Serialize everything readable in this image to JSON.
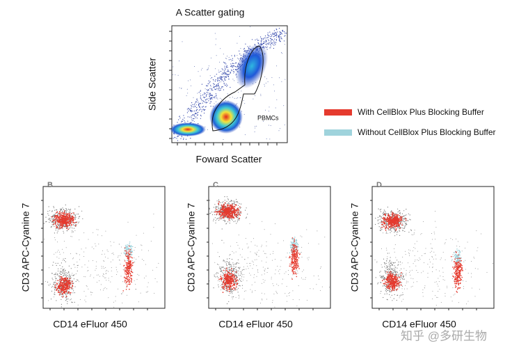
{
  "panel_a": {
    "title": "A Scatter gating",
    "y_label": "Side Scatter",
    "x_label": "Foward Scatter",
    "gate_label": "PBMCs"
  },
  "legend": [
    {
      "label": "With CellBlox Plus Blocking Buffer",
      "color": "#e53a2e"
    },
    {
      "label": "Without CellBlox Plus Blocking Buffer",
      "color": "#9fd3dc"
    }
  ],
  "panels": [
    {
      "letter": "B",
      "y_label": "CD3 APC-Cyanine 7",
      "x_label": "CD14 eFluor 450"
    },
    {
      "letter": "C",
      "y_label": "CD3 APC-Cyanine 7",
      "x_label": "CD14 eFluor 450"
    },
    {
      "letter": "D",
      "y_label": "CD3 APC-Cyanine 7",
      "x_label": "CD14 eFluor 450"
    }
  ],
  "watermark": "知乎 @多研生物"
}
